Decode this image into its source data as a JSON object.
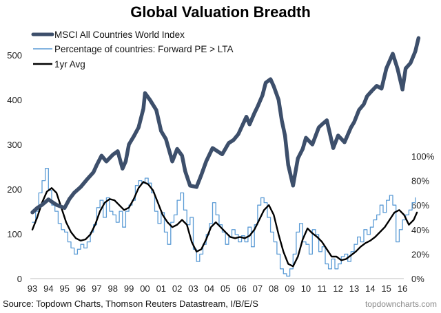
{
  "chart_data": {
    "type": "line",
    "title": "Global Valuation Breadth",
    "xlabel": "",
    "ylabel_left": "",
    "ylabel_right": "",
    "x_tick_labels": [
      "93",
      "94",
      "95",
      "96",
      "97",
      "98",
      "99",
      "00",
      "01",
      "02",
      "03",
      "04",
      "05",
      "06",
      "07",
      "08",
      "09",
      "10",
      "11",
      "12",
      "13",
      "14",
      "15",
      "16"
    ],
    "xlim": [
      1993,
      2017
    ],
    "y_left": {
      "lim": [
        0,
        520
      ],
      "ticks": [
        0,
        100,
        200,
        300,
        400,
        500
      ],
      "tick_labels": [
        "0",
        "100",
        "200",
        "300",
        "400",
        "500"
      ]
    },
    "y_right": {
      "lim": [
        0,
        1.0
      ],
      "ticks": [
        0,
        0.2,
        0.4,
        0.6,
        0.8,
        1.0
      ],
      "tick_labels": [
        "0%",
        "20%",
        "40%",
        "60%",
        "80%",
        "100%"
      ]
    },
    "grid": false,
    "legend_position": "top-left",
    "legend": [
      "MSCI All Countries World Index",
      "Percentage of countries: Forward PE > LTA",
      "1yr Avg"
    ],
    "colors": {
      "msci": "#3d4f6b",
      "pct": "#5b9bd5",
      "avg": "#000000",
      "axis": "#bfbfbf"
    },
    "series": [
      {
        "name": "MSCI All Countries World Index",
        "axis": "left",
        "x": [
          1993.0,
          1993.3,
          1993.6,
          1994.0,
          1994.2,
          1994.5,
          1995.0,
          1995.3,
          1995.6,
          1996.0,
          1996.4,
          1996.8,
          1997.0,
          1997.3,
          1997.6,
          1998.0,
          1998.3,
          1998.6,
          1998.8,
          1999.0,
          1999.3,
          1999.6,
          1999.9,
          2000.0,
          2000.3,
          2000.7,
          2001.0,
          2001.3,
          2001.7,
          2002.0,
          2002.3,
          2002.5,
          2002.8,
          2003.2,
          2003.5,
          2003.8,
          2004.2,
          2004.5,
          2004.8,
          2005.2,
          2005.5,
          2005.8,
          2006.3,
          2006.5,
          2006.8,
          2007.0,
          2007.3,
          2007.5,
          2007.8,
          2008.0,
          2008.3,
          2008.5,
          2008.7,
          2008.9,
          2009.2,
          2009.5,
          2009.8,
          2010.0,
          2010.4,
          2010.8,
          2011.0,
          2011.3,
          2011.7,
          2012.0,
          2012.4,
          2012.8,
          2013.0,
          2013.3,
          2013.6,
          2013.8,
          2014.1,
          2014.4,
          2014.7,
          2015.0,
          2015.4,
          2015.7,
          2016.0,
          2016.2,
          2016.5,
          2016.8,
          2017.0
        ],
        "values": [
          148,
          158,
          165,
          177,
          172,
          165,
          158,
          178,
          192,
          205,
          222,
          238,
          254,
          275,
          262,
          277,
          285,
          246,
          262,
          300,
          318,
          338,
          380,
          415,
          400,
          377,
          330,
          312,
          262,
          290,
          275,
          240,
          208,
          205,
          232,
          262,
          292,
          285,
          278,
          303,
          310,
          323,
          362,
          345,
          370,
          385,
          410,
          438,
          446,
          430,
          400,
          354,
          320,
          254,
          208,
          269,
          290,
          315,
          300,
          338,
          345,
          354,
          292,
          320,
          305,
          338,
          350,
          377,
          390,
          408,
          420,
          431,
          425,
          470,
          503,
          469,
          423,
          470,
          482,
          508,
          538
        ]
      },
      {
        "name": "Percentage of countries: Forward PE > LTA",
        "axis": "right",
        "x": [
          1993.0,
          1993.2,
          1993.4,
          1993.6,
          1993.8,
          1994.0,
          1994.2,
          1994.4,
          1994.6,
          1994.8,
          1995.0,
          1995.2,
          1995.4,
          1995.6,
          1995.8,
          1996.0,
          1996.2,
          1996.4,
          1996.6,
          1996.8,
          1997.0,
          1997.2,
          1997.4,
          1997.6,
          1997.8,
          1998.0,
          1998.2,
          1998.4,
          1998.6,
          1998.8,
          1999.0,
          1999.2,
          1999.4,
          1999.6,
          1999.8,
          2000.0,
          2000.2,
          2000.4,
          2000.6,
          2000.8,
          2001.0,
          2001.2,
          2001.4,
          2001.6,
          2001.8,
          2002.0,
          2002.2,
          2002.4,
          2002.6,
          2002.8,
          2003.0,
          2003.2,
          2003.4,
          2003.6,
          2003.8,
          2004.0,
          2004.2,
          2004.4,
          2004.6,
          2004.8,
          2005.0,
          2005.2,
          2005.4,
          2005.6,
          2005.8,
          2006.0,
          2006.2,
          2006.4,
          2006.6,
          2006.8,
          2007.0,
          2007.2,
          2007.4,
          2007.6,
          2007.8,
          2008.0,
          2008.2,
          2008.4,
          2008.6,
          2008.8,
          2009.0,
          2009.2,
          2009.4,
          2009.6,
          2009.8,
          2010.0,
          2010.2,
          2010.4,
          2010.6,
          2010.8,
          2011.0,
          2011.2,
          2011.4,
          2011.6,
          2011.8,
          2012.0,
          2012.2,
          2012.4,
          2012.6,
          2012.8,
          2013.0,
          2013.2,
          2013.4,
          2013.6,
          2013.8,
          2014.0,
          2014.2,
          2014.4,
          2014.6,
          2014.8,
          2015.0,
          2015.2,
          2015.4,
          2015.6,
          2015.8,
          2016.0,
          2016.2,
          2016.4,
          2016.6,
          2016.8
        ],
        "values": [
          0.46,
          0.55,
          0.7,
          0.8,
          0.9,
          0.72,
          0.6,
          0.55,
          0.45,
          0.4,
          0.38,
          0.3,
          0.25,
          0.2,
          0.24,
          0.28,
          0.25,
          0.3,
          0.38,
          0.44,
          0.58,
          0.64,
          0.5,
          0.66,
          0.55,
          0.52,
          0.46,
          0.55,
          0.42,
          0.55,
          0.6,
          0.64,
          0.76,
          0.8,
          0.78,
          0.82,
          0.78,
          0.7,
          0.55,
          0.45,
          0.54,
          0.38,
          0.28,
          0.46,
          0.52,
          0.64,
          0.7,
          0.56,
          0.44,
          0.5,
          0.24,
          0.14,
          0.2,
          0.28,
          0.36,
          0.45,
          0.62,
          0.52,
          0.44,
          0.38,
          0.28,
          0.34,
          0.4,
          0.36,
          0.3,
          0.35,
          0.3,
          0.42,
          0.26,
          0.44,
          0.6,
          0.66,
          0.62,
          0.5,
          0.38,
          0.3,
          0.2,
          0.08,
          0.04,
          0.02,
          0.08,
          0.2,
          0.38,
          0.45,
          0.3,
          0.28,
          0.2,
          0.4,
          0.36,
          0.22,
          0.26,
          0.12,
          0.08,
          0.16,
          0.08,
          0.12,
          0.18,
          0.2,
          0.14,
          0.22,
          0.28,
          0.34,
          0.3,
          0.4,
          0.36,
          0.42,
          0.48,
          0.52,
          0.6,
          0.54,
          0.64,
          0.68,
          0.6,
          0.3,
          0.4,
          0.48,
          0.52,
          0.56,
          0.62,
          0.66
        ]
      },
      {
        "name": "1yr Avg",
        "axis": "right",
        "x": [
          1993.0,
          1993.3,
          1993.6,
          1993.9,
          1994.2,
          1994.5,
          1994.8,
          1995.1,
          1995.4,
          1995.7,
          1996.0,
          1996.3,
          1996.6,
          1996.9,
          1997.2,
          1997.5,
          1997.8,
          1998.1,
          1998.4,
          1998.7,
          1999.0,
          1999.3,
          1999.6,
          1999.9,
          2000.2,
          2000.5,
          2000.8,
          2001.1,
          2001.4,
          2001.7,
          2002.0,
          2002.3,
          2002.6,
          2002.9,
          2003.2,
          2003.5,
          2003.8,
          2004.1,
          2004.4,
          2004.7,
          2005.0,
          2005.3,
          2005.6,
          2005.9,
          2006.2,
          2006.5,
          2006.8,
          2007.1,
          2007.4,
          2007.7,
          2008.0,
          2008.3,
          2008.6,
          2008.9,
          2009.2,
          2009.5,
          2009.8,
          2010.1,
          2010.4,
          2010.7,
          2011.0,
          2011.3,
          2011.6,
          2011.9,
          2012.2,
          2012.5,
          2012.8,
          2013.1,
          2013.4,
          2013.7,
          2014.0,
          2014.3,
          2014.6,
          2014.9,
          2015.2,
          2015.5,
          2015.8,
          2016.1,
          2016.4,
          2016.7,
          2016.9
        ],
        "values": [
          0.4,
          0.5,
          0.62,
          0.71,
          0.74,
          0.7,
          0.58,
          0.46,
          0.38,
          0.33,
          0.31,
          0.32,
          0.36,
          0.44,
          0.55,
          0.62,
          0.65,
          0.64,
          0.6,
          0.56,
          0.58,
          0.65,
          0.74,
          0.79,
          0.77,
          0.72,
          0.62,
          0.52,
          0.46,
          0.42,
          0.44,
          0.48,
          0.44,
          0.3,
          0.22,
          0.24,
          0.32,
          0.42,
          0.46,
          0.42,
          0.38,
          0.34,
          0.33,
          0.34,
          0.33,
          0.35,
          0.4,
          0.48,
          0.56,
          0.6,
          0.52,
          0.36,
          0.22,
          0.12,
          0.1,
          0.18,
          0.32,
          0.41,
          0.37,
          0.34,
          0.3,
          0.24,
          0.18,
          0.18,
          0.15,
          0.16,
          0.19,
          0.22,
          0.26,
          0.29,
          0.31,
          0.34,
          0.38,
          0.42,
          0.48,
          0.54,
          0.56,
          0.52,
          0.44,
          0.48,
          0.54
        ]
      }
    ]
  },
  "source_note": "Source: Topdown Charts, Thomson Reuters Datastream, I/B/E/S",
  "brand": "topdowncharts.com"
}
